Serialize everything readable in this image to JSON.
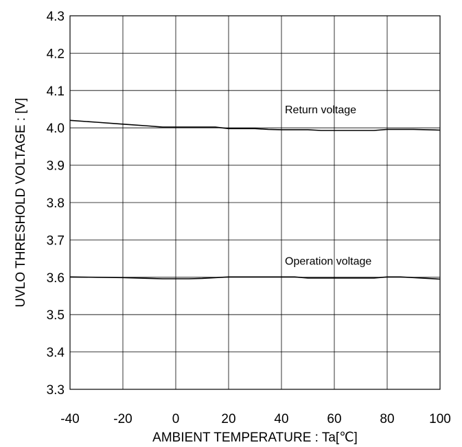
{
  "chart_data": {
    "type": "line",
    "xlabel": "AMBIENT TEMPERATURE : Ta[℃]",
    "ylabel": "UVLO THRESHOLD VOLTAGE  :  [V]",
    "xlim": [
      -40,
      100
    ],
    "ylim": [
      3.3,
      4.3
    ],
    "x_ticks": [
      -40,
      -20,
      0,
      20,
      40,
      60,
      80,
      100
    ],
    "x_tick_labels": [
      "-40",
      "-20",
      "0",
      "20",
      "40",
      "60",
      "80",
      "100"
    ],
    "y_ticks": [
      3.3,
      3.4,
      3.5,
      3.6,
      3.7,
      3.8,
      3.9,
      4.0,
      4.1,
      4.2,
      4.3
    ],
    "y_tick_labels": [
      "3.3",
      "3.4",
      "3.5",
      "3.6",
      "3.7",
      "3.8",
      "3.9",
      "4.0",
      "4.1",
      "4.2",
      "4.3"
    ],
    "grid": true,
    "legend": "none",
    "annotations": [
      {
        "text": "Return voltage",
        "x": 40,
        "y": 4.05
      },
      {
        "text": "Operation voltage",
        "x": 40,
        "y": 3.645
      }
    ],
    "series": [
      {
        "x": [
          -40,
          -30,
          -20,
          -10,
          -5,
          0,
          10,
          15,
          20,
          30,
          35,
          40,
          50,
          55,
          60,
          70,
          75,
          80,
          90,
          100
        ],
        "y": [
          4.02,
          4.015,
          4.01,
          4.005,
          4.002,
          4.002,
          4.002,
          4.002,
          3.998,
          3.998,
          3.996,
          3.995,
          3.995,
          3.993,
          3.993,
          3.993,
          3.993,
          3.996,
          3.996,
          3.994
        ]
      },
      {
        "x": [
          -40,
          -30,
          -20,
          -10,
          -5,
          0,
          5,
          10,
          20,
          30,
          40,
          45,
          50,
          60,
          70,
          75,
          80,
          85,
          90,
          100
        ],
        "y": [
          3.601,
          3.6,
          3.599,
          3.597,
          3.596,
          3.596,
          3.596,
          3.597,
          3.601,
          3.601,
          3.601,
          3.601,
          3.598,
          3.598,
          3.598,
          3.598,
          3.601,
          3.601,
          3.599,
          3.595
        ]
      }
    ]
  }
}
